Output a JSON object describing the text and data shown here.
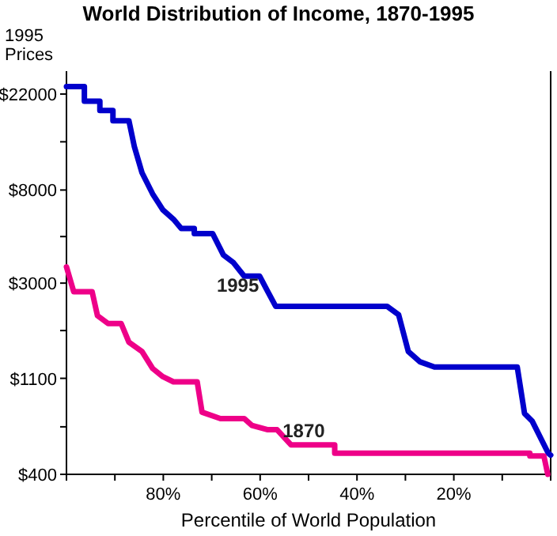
{
  "chart_data": {
    "type": "line",
    "title": "World Distribution of Income, 1870-1995",
    "xlabel": "Percentile of World Population",
    "ylabel": "1995 Prices",
    "log": "y",
    "xlim": [
      100,
      0
    ],
    "ylim": [
      400,
      28000
    ],
    "xticks": [
      {
        "value": 100,
        "label": null
      },
      {
        "value": 90,
        "label": null
      },
      {
        "value": 80,
        "label": "80%"
      },
      {
        "value": 70,
        "label": null
      },
      {
        "value": 60,
        "label": "60%"
      },
      {
        "value": 50,
        "label": null
      },
      {
        "value": 40,
        "label": "40%"
      },
      {
        "value": 30,
        "label": null
      },
      {
        "value": 20,
        "label": "20%"
      },
      {
        "value": 10,
        "label": null
      },
      {
        "value": 0,
        "label": null
      }
    ],
    "yticks": [
      {
        "value": 400,
        "label": "$400"
      },
      {
        "value": 660,
        "label": null
      },
      {
        "value": 1100,
        "label": "$1100"
      },
      {
        "value": 1820,
        "label": null
      },
      {
        "value": 3000,
        "label": "$3000"
      },
      {
        "value": 4900,
        "label": null
      },
      {
        "value": 8000,
        "label": "$8000"
      },
      {
        "value": 13300,
        "label": null
      },
      {
        "value": 22000,
        "label": "$22000"
      }
    ],
    "grid": false,
    "marker": "none",
    "line_style": "solid",
    "series": [
      {
        "color": "#0000cc",
        "x": [
          100,
          96.3,
          96.3,
          93.1,
          93.1,
          90.4,
          90.4,
          87.1,
          86,
          84.4,
          82.2,
          80.1,
          77.9,
          76.3,
          73.6,
          73.6,
          69.8,
          67.6,
          65.5,
          63.3,
          60.1,
          58.4,
          56.8,
          33.8,
          31.4,
          29.4,
          27,
          24,
          6.9,
          5.4,
          3.8,
          0.5,
          0
        ],
        "values": [
          23800,
          23800,
          20400,
          20400,
          18500,
          18500,
          16600,
          16600,
          12700,
          9600,
          7680,
          6500,
          5880,
          5340,
          5340,
          5050,
          5050,
          4040,
          3720,
          3230,
          3230,
          2740,
          2350,
          2350,
          2150,
          1460,
          1310,
          1240,
          1240,
          760,
          700,
          500,
          490
        ]
      },
      {
        "color": "#ee0088",
        "x": [
          100,
          98.5,
          94.7,
          93.6,
          91.4,
          88.7,
          87.1,
          84.4,
          82.2,
          80.1,
          77.9,
          73,
          72,
          68.2,
          63.3,
          61.7,
          58.4,
          56.5,
          53.6,
          44.6,
          44.6,
          4.3,
          4.3,
          1.4,
          0.6
        ],
        "values": [
          3560,
          2740,
          2740,
          2130,
          1960,
          1960,
          1610,
          1460,
          1220,
          1120,
          1060,
          1060,
          770,
          720,
          720,
          670,
          640,
          640,
          545,
          545,
          500,
          500,
          485,
          485,
          400
        ]
      }
    ],
    "annotations": [
      {
        "text": "1995",
        "x": 63.3,
        "y": 3230
      },
      {
        "text": "1870",
        "x": 53.6,
        "y": 545
      }
    ]
  }
}
